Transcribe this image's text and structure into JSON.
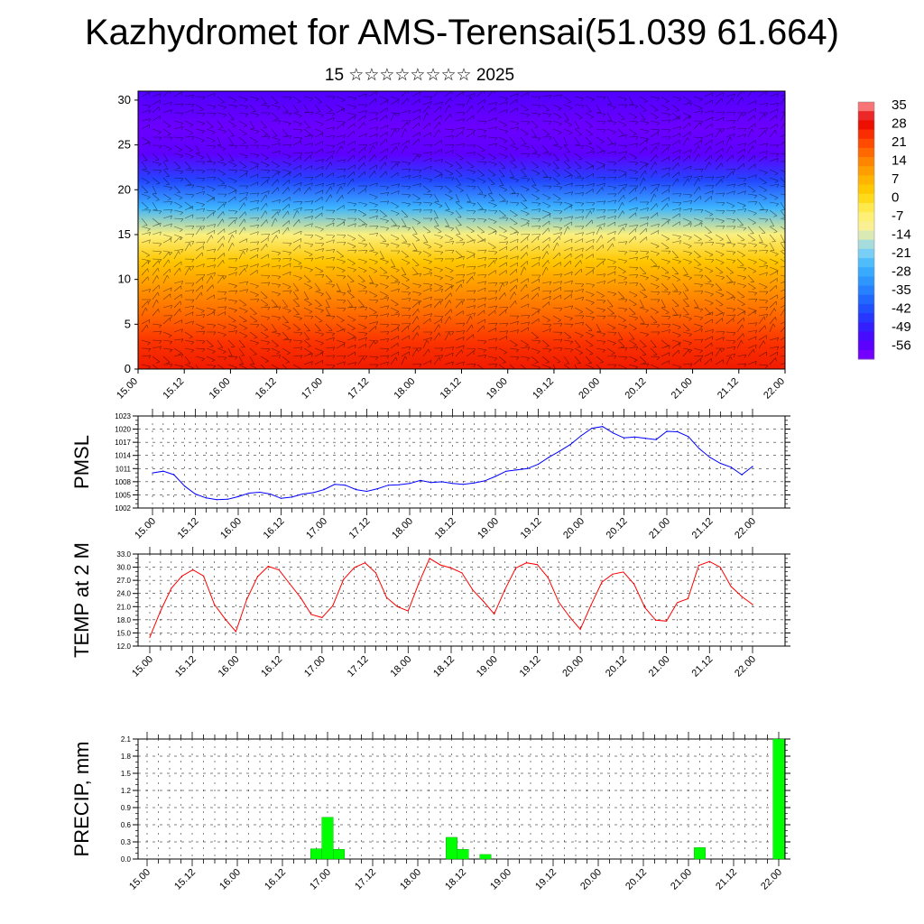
{
  "title": "Kazhydromet for AMS-Terensai(51.039 61.664)",
  "subtitle": "15 ☆☆☆☆☆☆☆☆ 2025",
  "time_labels": [
    "15.00",
    "15.12",
    "16.00",
    "16.12",
    "17.00",
    "17.12",
    "18.00",
    "18.12",
    "19.00",
    "19.12",
    "20.00",
    "20.12",
    "21.00",
    "21.12",
    "22.00"
  ],
  "colors": {
    "pmsl_line": "#0000ff",
    "temp_line": "#ff0000",
    "precip_bar": "#00ff00",
    "grid": "#000000"
  },
  "chart_data": [
    {
      "type": "heatmap",
      "title": "",
      "y_ticks": [
        "0",
        "5",
        "10",
        "15",
        "20",
        "25",
        "30"
      ],
      "ylim": [
        0,
        31
      ],
      "x_ticks": [
        "15.00",
        "15.12",
        "16.00",
        "16.12",
        "17.00",
        "17.12",
        "18.00",
        "18.12",
        "19.00",
        "19.12",
        "20.00",
        "20.12",
        "21.00",
        "21.12",
        "22.00"
      ],
      "colorbar_labels": [
        "35",
        "28",
        "21",
        "14",
        "7",
        "0",
        "-7",
        "-14",
        "-21",
        "-28",
        "-35",
        "-42",
        "-49",
        "-56"
      ],
      "colorbar_range": [
        -63,
        35
      ],
      "profile_levels": [
        0,
        3,
        6,
        9,
        12,
        15,
        18,
        21,
        24,
        27,
        31
      ],
      "profile_temps": [
        25,
        22,
        16,
        10,
        2,
        -10,
        -28,
        -45,
        -58,
        -60,
        -56
      ],
      "overlay": "wind barbs"
    },
    {
      "type": "line",
      "ylabel": "PMSL",
      "ylim": [
        1002,
        1023
      ],
      "y_ticks": [
        "1002",
        "1005",
        "1008",
        "1011",
        "1014",
        "1017",
        "1020",
        "1023"
      ],
      "x": [
        "15.00",
        "15.03",
        "15.06",
        "15.09",
        "15.12",
        "15.15",
        "15.18",
        "15.21",
        "16.00",
        "16.03",
        "16.06",
        "16.09",
        "16.12",
        "16.15",
        "16.18",
        "16.21",
        "17.00",
        "17.03",
        "17.06",
        "17.09",
        "17.12",
        "17.15",
        "17.18",
        "17.21",
        "18.00",
        "18.03",
        "18.06",
        "18.09",
        "18.12",
        "18.15",
        "18.18",
        "18.21",
        "19.00",
        "19.03",
        "19.06",
        "19.09",
        "19.12",
        "19.15",
        "19.18",
        "19.21",
        "20.00",
        "20.03",
        "20.06",
        "20.09",
        "20.12",
        "20.15",
        "20.18",
        "20.21",
        "21.00",
        "21.03",
        "21.06",
        "21.09",
        "21.12",
        "21.15",
        "21.18",
        "21.21",
        "22.00"
      ],
      "series": [
        {
          "values": [
            1010.0,
            1010.4,
            1009.6,
            1007.0,
            1005.2,
            1004.3,
            1003.9,
            1004.0,
            1004.6,
            1005.4,
            1005.6,
            1005.2,
            1004.2,
            1004.5,
            1005.2,
            1005.5,
            1006.2,
            1007.4,
            1007.2,
            1006.2,
            1005.8,
            1006.4,
            1007.2,
            1007.3,
            1007.6,
            1008.3,
            1007.8,
            1008.0,
            1007.6,
            1007.4,
            1007.7,
            1008.2,
            1009.2,
            1010.4,
            1010.7,
            1011.0,
            1012.0,
            1013.6,
            1015.0,
            1016.5,
            1018.5,
            1020.2,
            1020.6,
            1019.1,
            1018.0,
            1018.2,
            1017.9,
            1017.6,
            1019.5,
            1019.4,
            1018.3,
            1015.6,
            1013.6,
            1012.2,
            1011.3,
            1009.6,
            1011.5
          ]
        }
      ]
    },
    {
      "type": "line",
      "ylabel": "TEMP at 2 M",
      "ylim": [
        12.0,
        33.0
      ],
      "y_ticks": [
        "12.0",
        "15.0",
        "18.0",
        "21.0",
        "24.0",
        "27.0",
        "30.0",
        "33.0"
      ],
      "x": [
        "15.00",
        "15.03",
        "15.06",
        "15.09",
        "15.12",
        "15.15",
        "15.18",
        "15.21",
        "16.00",
        "16.03",
        "16.06",
        "16.09",
        "16.12",
        "16.15",
        "16.18",
        "16.21",
        "17.00",
        "17.03",
        "17.06",
        "17.09",
        "17.12",
        "17.15",
        "17.18",
        "17.21",
        "18.00",
        "18.03",
        "18.06",
        "18.09",
        "18.12",
        "18.15",
        "18.18",
        "18.21",
        "19.00",
        "19.03",
        "19.06",
        "19.09",
        "19.12",
        "19.15",
        "19.18",
        "19.21",
        "20.00",
        "20.03",
        "20.06",
        "20.09",
        "20.12",
        "20.15",
        "20.18",
        "20.21",
        "21.00",
        "21.03",
        "21.06",
        "21.09",
        "21.12",
        "21.15",
        "21.18",
        "21.21",
        "22.00"
      ],
      "series": [
        {
          "values": [
            14.0,
            20.0,
            25.2,
            28.0,
            29.4,
            28.0,
            21.5,
            18.2,
            15.3,
            22.6,
            27.8,
            30.2,
            29.4,
            26.2,
            23.1,
            19.2,
            18.5,
            21.2,
            27.2,
            29.9,
            31.0,
            28.7,
            23.1,
            21.0,
            20.0,
            26.4,
            32.0,
            30.5,
            29.8,
            28.7,
            24.8,
            22.2,
            19.3,
            24.9,
            29.8,
            31.0,
            30.6,
            27.6,
            22.0,
            18.7,
            15.8,
            21.4,
            26.6,
            28.4,
            28.9,
            26.1,
            20.8,
            17.9,
            17.7,
            21.9,
            22.8,
            30.4,
            31.3,
            30.0,
            25.6,
            23.3,
            21.5
          ]
        }
      ]
    },
    {
      "type": "bar",
      "ylabel": "PRECIP, mm",
      "ylim": [
        0.0,
        2.1
      ],
      "y_ticks": [
        "0.0",
        "0.3",
        "0.6",
        "0.9",
        "1.2",
        "1.5",
        "1.8",
        "2.1"
      ],
      "x": [
        "16.18",
        "16.21",
        "17.00",
        "17.03",
        "17.06",
        "18.06",
        "18.09",
        "18.12",
        "18.18",
        "21.03",
        "22.00"
      ],
      "values": [
        0.0,
        0.18,
        0.73,
        0.17,
        0.0,
        0.0,
        0.38,
        0.17,
        0.08,
        0.2,
        2.1
      ]
    }
  ]
}
